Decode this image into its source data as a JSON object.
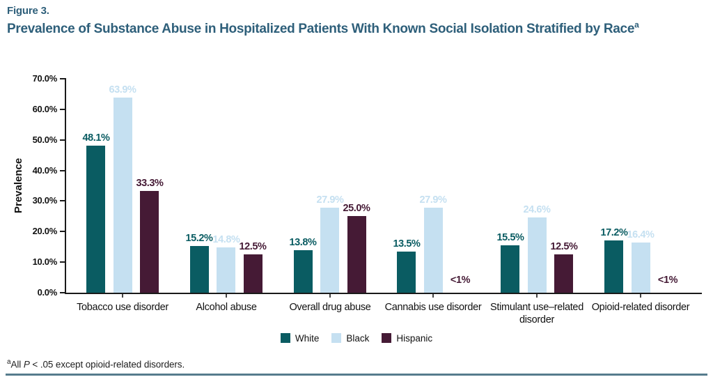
{
  "figure": {
    "label": "Figure 3.",
    "title": "Prevalence of Substance Abuse in Hospitalized Patients With Known Social Isolation Stratified by Race",
    "title_superscript": "a",
    "title_color": "#2e5f7a"
  },
  "chart_data": {
    "type": "bar",
    "title": "Prevalence of Substance Abuse in Hospitalized Patients With Known Social Isolation Stratified by Race",
    "xlabel": "",
    "ylabel": "Prevalence",
    "ylim": [
      0,
      70
    ],
    "ytick_interval": 10,
    "ytick_labels": [
      "0.0%",
      "10.0%",
      "20.0%",
      "30.0%",
      "40.0%",
      "50.0%",
      "60.0%",
      "70.0%"
    ],
    "grid": false,
    "legend_position": "bottom-center",
    "categories": [
      "Tobacco use disorder",
      "Alcohol abuse",
      "Overall drug abuse",
      "Cannabis use disorder",
      "Stimulant use–related disorder",
      "Opioid-related disorder"
    ],
    "series": [
      {
        "name": "White",
        "color": "#0a5c62",
        "values": [
          48.1,
          15.2,
          13.8,
          13.5,
          15.5,
          17.2
        ],
        "labels": [
          "48.1%",
          "15.2%",
          "13.8%",
          "13.5%",
          "15.5%",
          "17.2%"
        ]
      },
      {
        "name": "Black",
        "color": "#c5e0f1",
        "values": [
          63.9,
          14.8,
          27.9,
          27.9,
          24.6,
          16.4
        ],
        "labels": [
          "63.9%",
          "14.8%",
          "27.9%",
          "27.9%",
          "24.6%",
          "16.4%"
        ]
      },
      {
        "name": "Hispanic",
        "color": "#451a35",
        "values": [
          33.3,
          12.5,
          25.0,
          null,
          12.5,
          null
        ],
        "labels": [
          "33.3%",
          "12.5%",
          "25.0%",
          "<1%",
          "12.5%",
          "<1%"
        ]
      }
    ]
  },
  "footnote": {
    "superscript": "a",
    "lead": "All ",
    "p_italic": "P",
    "rest": " < .05 except opioid-related disorders."
  },
  "colors": {
    "axis": "#1a1a1a",
    "title": "#2e5f7a",
    "bottom_rule": "#567c8d"
  }
}
